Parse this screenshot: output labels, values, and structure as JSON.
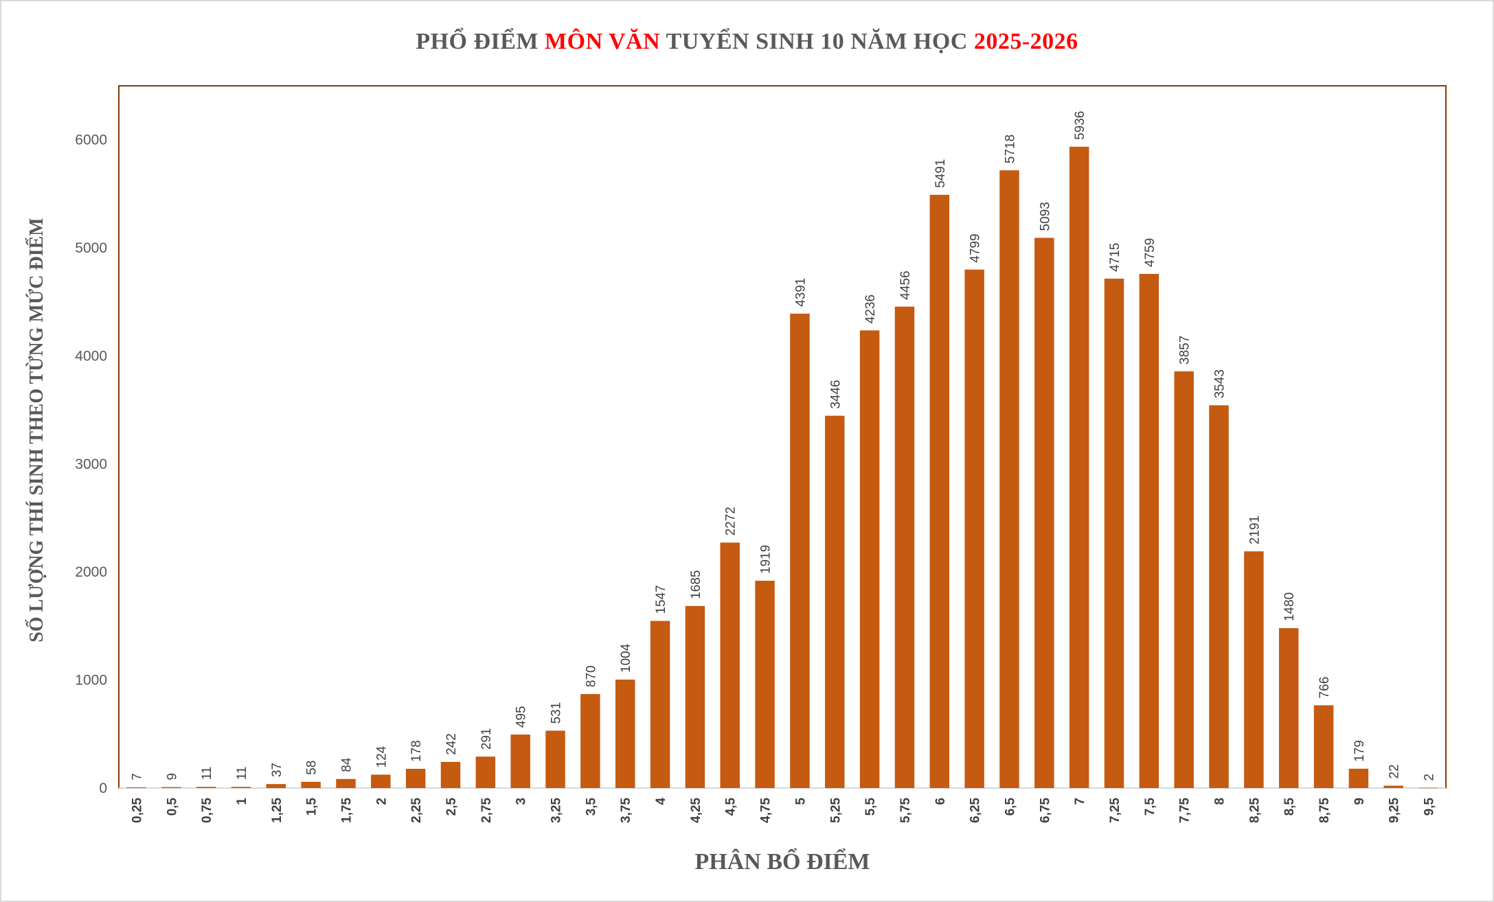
{
  "title": {
    "part1": "PHỔ ĐIỂM ",
    "part2": "MÔN VĂN",
    "part3": " TUYỂN SINH 10 NĂM HỌC ",
    "part4": "2025-2026"
  },
  "colors": {
    "bar": "#c55a11",
    "plot_border": "#843c0c",
    "title_highlight": "#ff0000",
    "text": "#595959"
  },
  "chart_data": {
    "type": "bar",
    "title": "PHỔ ĐIỂM MÔN VĂN TUYỂN SINH 10 NĂM HỌC 2025-2026",
    "xlabel": "PHÂN BỔ ĐIỂM",
    "ylabel": "SỐ LƯỢNG THÍ SINH THEO TỪNG MỨC ĐIỂM",
    "ylim": [
      0,
      6500
    ],
    "yticks": [
      0,
      1000,
      2000,
      3000,
      4000,
      5000,
      6000
    ],
    "grid": false,
    "legend": "none",
    "categories": [
      "0,25",
      "0,5",
      "0,75",
      "1",
      "1,25",
      "1,5",
      "1,75",
      "2",
      "2,25",
      "2,5",
      "2,75",
      "3",
      "3,25",
      "3,5",
      "3,75",
      "4",
      "4,25",
      "4,5",
      "4,75",
      "5",
      "5,25",
      "5,5",
      "5,75",
      "6",
      "6,25",
      "6,5",
      "6,75",
      "7",
      "7,25",
      "7,5",
      "7,75",
      "8",
      "8,25",
      "8,5",
      "8,75",
      "9",
      "9,25",
      "9,5"
    ],
    "values": [
      7,
      9,
      11,
      11,
      37,
      58,
      84,
      124,
      178,
      242,
      291,
      495,
      531,
      870,
      1004,
      1547,
      1685,
      2272,
      1919,
      4391,
      3446,
      4236,
      4456,
      5491,
      4799,
      5718,
      5093,
      5936,
      4715,
      4759,
      3857,
      3543,
      2191,
      1480,
      766,
      179,
      22,
      2
    ]
  }
}
